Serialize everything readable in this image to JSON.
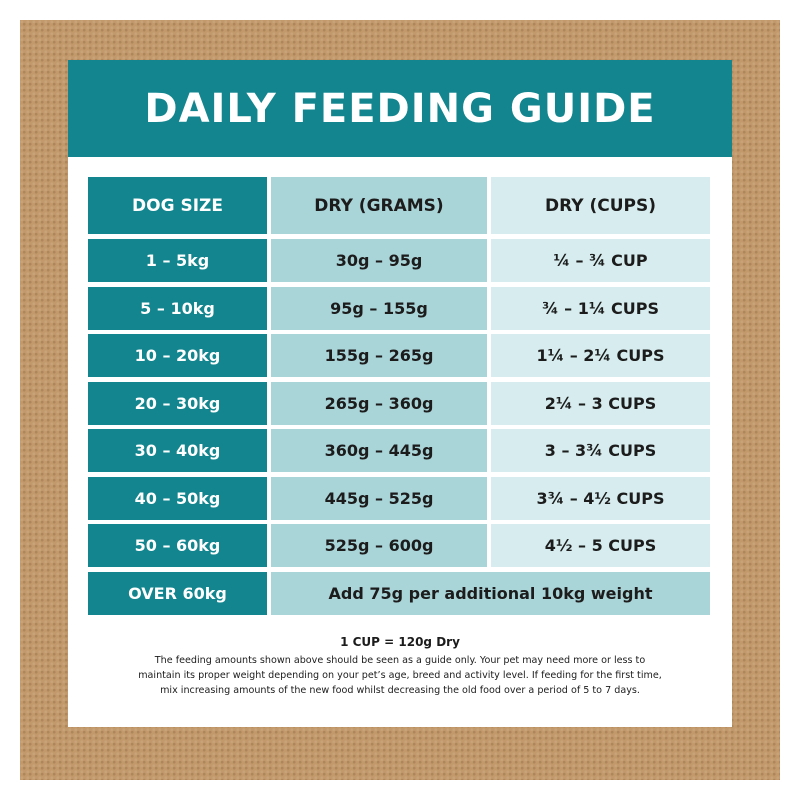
{
  "title": "DAILY FEEDING GUIDE",
  "table": {
    "headers": [
      "DOG SIZE",
      "DRY (GRAMS)",
      "DRY (CUPS)"
    ],
    "rows": [
      {
        "size": "1 – 5kg",
        "grams": "30g – 95g",
        "cups": "¼ – ¾ CUP"
      },
      {
        "size": "5 – 10kg",
        "grams": "95g – 155g",
        "cups": "¾ – 1¼ CUPS"
      },
      {
        "size": "10 – 20kg",
        "grams": "155g – 265g",
        "cups": "1¼ – 2¼ CUPS"
      },
      {
        "size": "20 – 30kg",
        "grams": "265g – 360g",
        "cups": "2¼ – 3 CUPS"
      },
      {
        "size": "30 – 40kg",
        "grams": "360g – 445g",
        "cups": "3 – 3¾ CUPS"
      },
      {
        "size": "40 – 50kg",
        "grams": "445g – 525g",
        "cups": "3¾ – 4½ CUPS"
      },
      {
        "size": "50 – 60kg",
        "grams": "525g – 600g",
        "cups": "4½ – 5 CUPS"
      }
    ],
    "last_row": {
      "size": "OVER 60kg",
      "note": "Add 75g per additional 10kg weight"
    }
  },
  "footer": {
    "cup_note": "1 CUP = 120g Dry",
    "lines": [
      "The feeding amounts shown above should be seen as a guide only. Your pet may need more or less to",
      "maintain its proper weight depending on your pet’s age, breed and activity level. If feeding for the first time,",
      "mix increasing amounts of the new food whilst decreasing the old food over a period of 5 to 7 days."
    ]
  },
  "colors": {
    "teal": "#12858e",
    "light_teal": "#a9d4d8",
    "pale_teal": "#d6ecee",
    "kraft": "#c2996b"
  }
}
